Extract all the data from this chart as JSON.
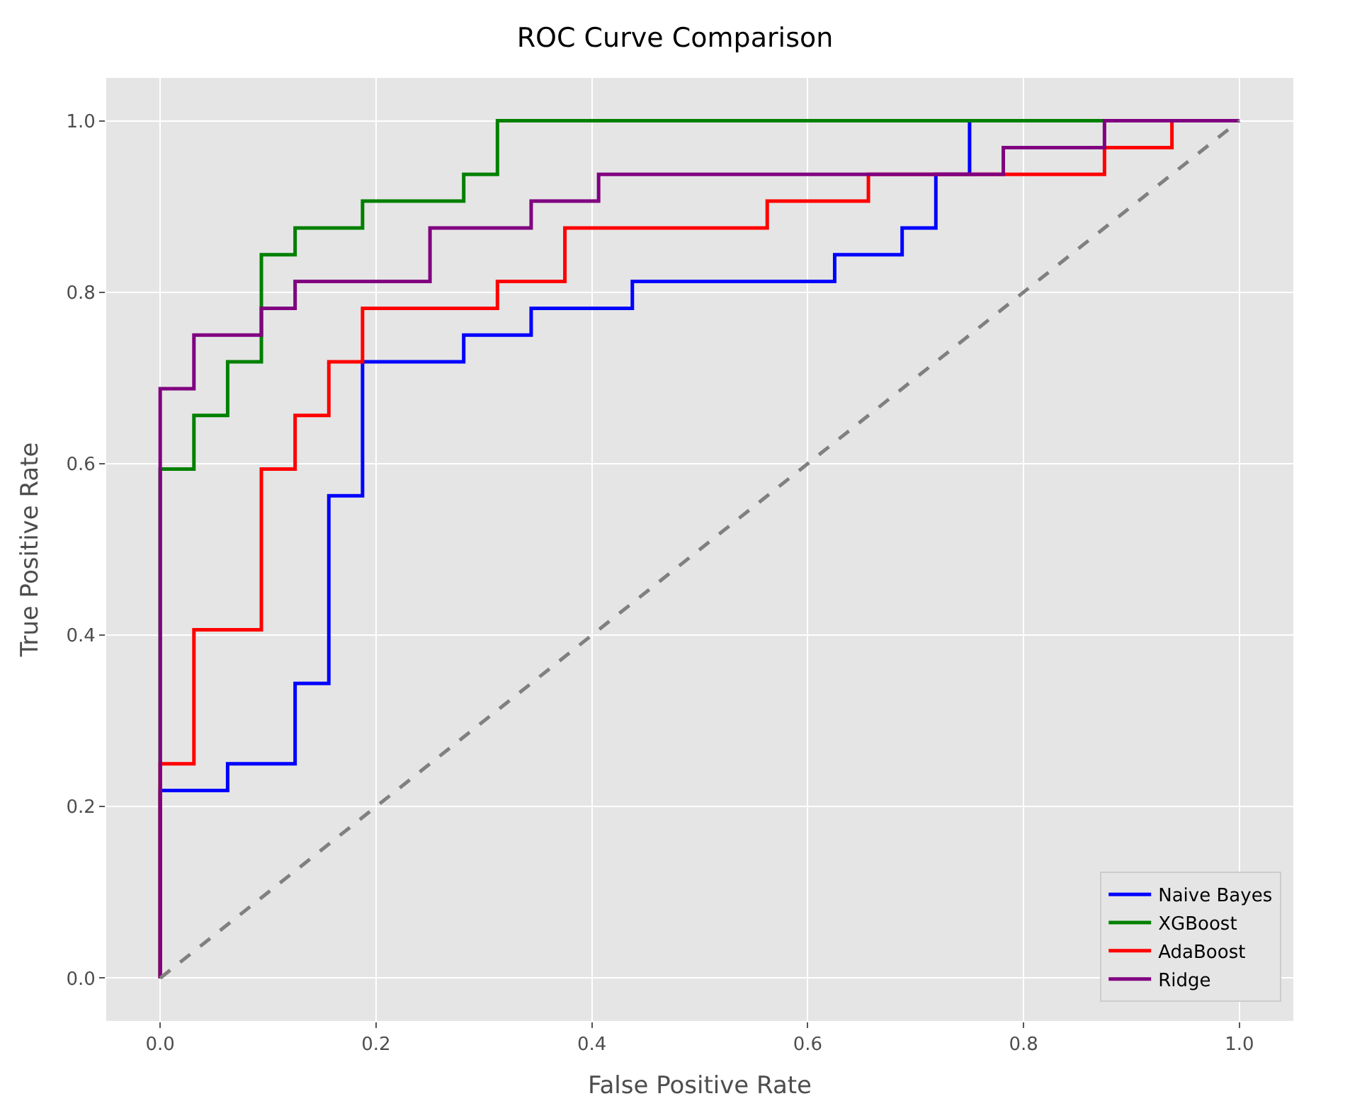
{
  "chart_data": {
    "type": "line",
    "title": "ROC Curve Comparison",
    "xlabel": "False Positive Rate",
    "ylabel": "True Positive Rate",
    "xlim": [
      -0.05,
      1.05
    ],
    "ylim": [
      -0.05,
      1.05
    ],
    "xticks": [
      {
        "value": 0,
        "label": "0.0"
      },
      {
        "value": 0.2,
        "label": "0.2"
      },
      {
        "value": 0.4,
        "label": "0.4"
      },
      {
        "value": 0.6,
        "label": "0.6"
      },
      {
        "value": 0.8,
        "label": "0.8"
      },
      {
        "value": 1,
        "label": "1.0"
      }
    ],
    "yticks": [
      {
        "value": 0,
        "label": "0.0"
      },
      {
        "value": 0.2,
        "label": "0.2"
      },
      {
        "value": 0.4,
        "label": "0.4"
      },
      {
        "value": 0.6,
        "label": "0.6"
      },
      {
        "value": 0.8,
        "label": "0.8"
      },
      {
        "value": 1,
        "label": "1.0"
      }
    ],
    "grid": true,
    "legend": "bottom right",
    "marker": "none",
    "line_style": "solid",
    "series": [
      {
        "name": "Naive Bayes",
        "color": "#0000ff",
        "x": [
          0,
          0,
          0.0625,
          0.0625,
          0.125,
          0.125,
          0.15625,
          0.15625,
          0.1875,
          0.1875,
          0.28125,
          0.28125,
          0.34375,
          0.34375,
          0.4375,
          0.4375,
          0.625,
          0.625,
          0.6875,
          0.6875,
          0.71875,
          0.71875,
          0.75,
          0.75,
          1
        ],
        "values": [
          0,
          0.21875,
          0.21875,
          0.25,
          0.25,
          0.34375,
          0.34375,
          0.5625,
          0.5625,
          0.71875,
          0.71875,
          0.75,
          0.75,
          0.78125,
          0.78125,
          0.8125,
          0.8125,
          0.84375,
          0.84375,
          0.875,
          0.875,
          0.9375,
          0.9375,
          1,
          1
        ]
      },
      {
        "name": "XGBoost",
        "color": "#008000",
        "x": [
          0,
          0,
          0.03125,
          0.03125,
          0.0625,
          0.0625,
          0.09375,
          0.09375,
          0.125,
          0.125,
          0.1875,
          0.1875,
          0.28125,
          0.28125,
          0.3125,
          0.3125,
          1
        ],
        "values": [
          0,
          0.59375,
          0.59375,
          0.65625,
          0.65625,
          0.71875,
          0.71875,
          0.84375,
          0.84375,
          0.875,
          0.875,
          0.90625,
          0.90625,
          0.9375,
          0.9375,
          1,
          1
        ]
      },
      {
        "name": "AdaBoost",
        "color": "#ff0000",
        "x": [
          0,
          0,
          0.03125,
          0.03125,
          0.09375,
          0.09375,
          0.125,
          0.125,
          0.15625,
          0.15625,
          0.1875,
          0.1875,
          0.3125,
          0.3125,
          0.375,
          0.375,
          0.5625,
          0.5625,
          0.65625,
          0.65625,
          0.875,
          0.875,
          0.9375,
          0.9375,
          1
        ],
        "values": [
          0,
          0.25,
          0.25,
          0.40625,
          0.40625,
          0.59375,
          0.59375,
          0.65625,
          0.65625,
          0.71875,
          0.71875,
          0.78125,
          0.78125,
          0.8125,
          0.8125,
          0.875,
          0.875,
          0.90625,
          0.90625,
          0.9375,
          0.9375,
          0.96875,
          0.96875,
          1,
          1
        ]
      },
      {
        "name": "Ridge",
        "color": "#800080",
        "x": [
          0,
          0,
          0.03125,
          0.03125,
          0.09375,
          0.09375,
          0.125,
          0.125,
          0.25,
          0.25,
          0.34375,
          0.34375,
          0.40625,
          0.40625,
          0.78125,
          0.78125,
          0.875,
          0.875,
          1
        ],
        "values": [
          0,
          0.6875,
          0.6875,
          0.75,
          0.75,
          0.78125,
          0.78125,
          0.8125,
          0.8125,
          0.875,
          0.875,
          0.90625,
          0.90625,
          0.9375,
          0.9375,
          0.96875,
          0.96875,
          1,
          1
        ]
      },
      {
        "color": "#808080",
        "line_style": "dashed",
        "x": [
          0,
          1
        ],
        "values": [
          0,
          1
        ]
      }
    ]
  }
}
